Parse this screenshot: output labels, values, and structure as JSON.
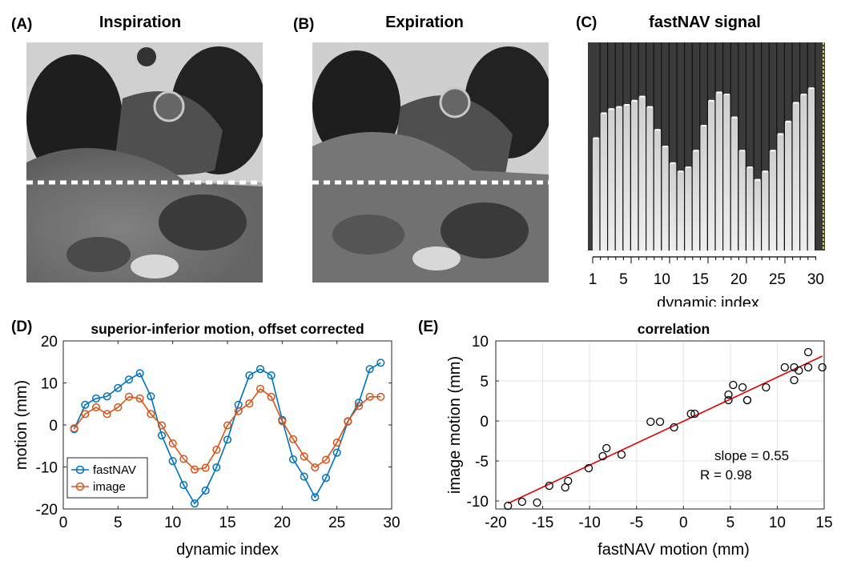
{
  "panels": {
    "a": {
      "letter": "(A)",
      "title": "Inspiration"
    },
    "b": {
      "letter": "(B)",
      "title": "Expiration"
    },
    "c": {
      "letter": "(C)",
      "title": "fastNAV signal",
      "ticks": [
        "1",
        "5",
        "10",
        "15",
        "20",
        "25",
        "30"
      ],
      "xlabel": "dynamic index"
    },
    "d": {
      "letter": "(D)"
    },
    "e": {
      "letter": "(E)"
    }
  },
  "nav_levels": [
    0.46,
    0.34,
    0.32,
    0.31,
    0.3,
    0.28,
    0.26,
    0.31,
    0.42,
    0.5,
    0.58,
    0.62,
    0.6,
    0.52,
    0.4,
    0.28,
    0.24,
    0.25,
    0.36,
    0.52,
    0.6,
    0.66,
    0.62,
    0.52,
    0.44,
    0.38,
    0.29,
    0.25,
    0.22
  ],
  "chart_data": [
    {
      "type": "line",
      "title": "superior-inferior motion, offset corrected",
      "xlabel": "dynamic index",
      "ylabel": "motion (mm)",
      "xlim": [
        0,
        30
      ],
      "ylim": [
        -20,
        20
      ],
      "xticks": [
        0,
        5,
        10,
        15,
        20,
        25,
        30
      ],
      "yticks": [
        -20,
        -10,
        0,
        10,
        20
      ],
      "grid": false,
      "legend": "bottom-left",
      "x": [
        1,
        2,
        3,
        4,
        5,
        6,
        7,
        8,
        9,
        10,
        11,
        12,
        13,
        14,
        15,
        16,
        17,
        18,
        19,
        20,
        21,
        22,
        23,
        24,
        25,
        26,
        27,
        28,
        29
      ],
      "series": [
        {
          "name": "fastNAV",
          "color": "#0072BD",
          "values": [
            -1,
            4.8,
            6.3,
            6.8,
            8.8,
            10.8,
            12.3,
            6.8,
            -2.5,
            -8.6,
            -14.3,
            -18.7,
            -15.6,
            -10.1,
            -3.5,
            4.8,
            11.8,
            13.3,
            11.8,
            1.2,
            -8.2,
            -12.3,
            -17.2,
            -12.6,
            -6.6,
            0.8,
            5.3,
            13.3,
            14.8
          ]
        },
        {
          "name": "image",
          "color": "#D95319",
          "values": [
            -0.8,
            2.6,
            4.2,
            2.6,
            4.2,
            6.7,
            6.3,
            2.6,
            -0.1,
            -4.4,
            -8.1,
            -10.6,
            -10.2,
            -5.9,
            -0.1,
            3.3,
            5.1,
            8.6,
            6.7,
            0.9,
            -3.4,
            -7.5,
            -10.1,
            -8.3,
            -4.2,
            0.9,
            4.5,
            6.7,
            6.7
          ]
        }
      ]
    },
    {
      "type": "scatter",
      "title": "correlation",
      "xlabel": "fastNAV motion (mm)",
      "ylabel": "image motion (mm)",
      "xlim": [
        -20,
        15
      ],
      "ylim": [
        -11,
        10
      ],
      "xticks": [
        -20,
        -15,
        -10,
        -5,
        0,
        5,
        10,
        15
      ],
      "yticks": [
        -10,
        -5,
        0,
        5,
        10
      ],
      "grid": true,
      "annotation": [
        "slope =  0.55",
        "R = 0.98"
      ],
      "fit": {
        "color": "#E00000",
        "x": [
          -18.7,
          14.8
        ],
        "y": [
          -10.3,
          8.1
        ]
      },
      "points": [
        [
          -1,
          -0.8
        ],
        [
          4.8,
          2.6
        ],
        [
          6.3,
          4.2
        ],
        [
          6.8,
          2.6
        ],
        [
          8.8,
          4.2
        ],
        [
          10.8,
          6.7
        ],
        [
          12.3,
          6.3
        ],
        [
          6.8,
          2.6
        ],
        [
          -2.5,
          -0.1
        ],
        [
          -8.6,
          -4.4
        ],
        [
          -14.3,
          -8.1
        ],
        [
          -18.7,
          -10.6
        ],
        [
          -15.6,
          -10.2
        ],
        [
          -10.1,
          -5.9
        ],
        [
          -3.5,
          -0.1
        ],
        [
          4.8,
          3.3
        ],
        [
          11.8,
          5.1
        ],
        [
          13.3,
          8.6
        ],
        [
          11.8,
          6.7
        ],
        [
          1.2,
          0.9
        ],
        [
          -8.2,
          -3.4
        ],
        [
          -12.3,
          -7.5
        ],
        [
          -17.2,
          -10.1
        ],
        [
          -12.6,
          -8.3
        ],
        [
          -6.6,
          -4.2
        ],
        [
          0.8,
          0.9
        ],
        [
          5.3,
          4.5
        ],
        [
          13.3,
          6.7
        ],
        [
          14.8,
          6.7
        ]
      ]
    }
  ]
}
